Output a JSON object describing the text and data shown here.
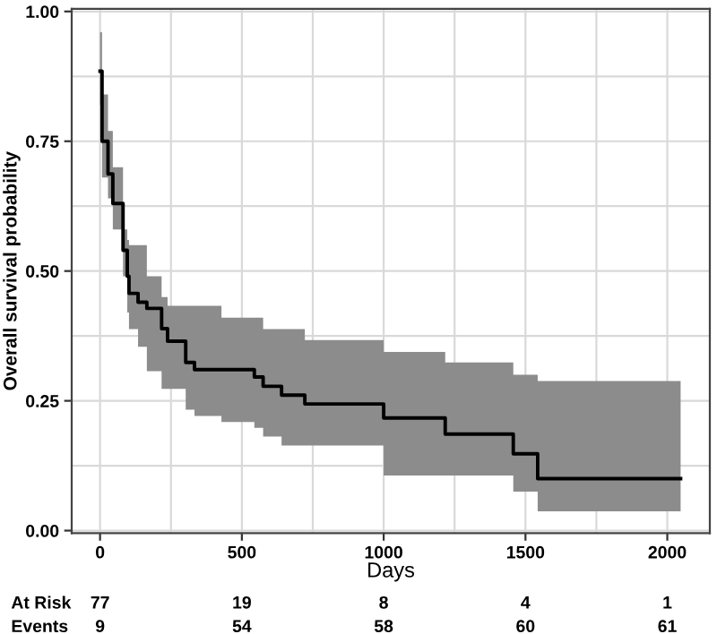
{
  "chart_data": {
    "type": "step",
    "xlabel": "Days",
    "ylabel": "Overall survival probability",
    "xlim": [
      -100,
      2150
    ],
    "ylim": [
      -0.005,
      1.005
    ],
    "xticks": [
      0,
      500,
      1000,
      1500,
      2000
    ],
    "yticks": [
      {
        "value": 0,
        "label": "0.00"
      },
      {
        "value": 0.25,
        "label": "0.25"
      },
      {
        "value": 0.5,
        "label": "0.50"
      },
      {
        "value": 0.75,
        "label": "0.75"
      },
      {
        "value": 1,
        "label": "1.00"
      }
    ],
    "grid": true,
    "series": [
      {
        "color": "#000000",
        "x": [
          0,
          7,
          28,
          45,
          81,
          96,
          102,
          134,
          165,
          217,
          238,
          302,
          333,
          428,
          544,
          575,
          640,
          722,
          1000,
          1217,
          1457,
          1543,
          2047
        ],
        "values": [
          0.885,
          0.75,
          0.687,
          0.63,
          0.54,
          0.49,
          0.457,
          0.44,
          0.428,
          0.389,
          0.365,
          0.324,
          0.31,
          0.31,
          0.296,
          0.278,
          0.261,
          0.244,
          0.217,
          0.186,
          0.148,
          0.1,
          0.1
        ],
        "upper": [
          0.96,
          0.84,
          0.77,
          0.7,
          0.58,
          0.56,
          0.55,
          0.55,
          0.49,
          0.45,
          0.433,
          0.433,
          0.433,
          0.41,
          0.41,
          0.388,
          0.388,
          0.367,
          0.344,
          0.324,
          0.3,
          0.288,
          0.288
        ],
        "lower": [
          0.82,
          0.68,
          0.64,
          0.58,
          0.49,
          0.42,
          0.388,
          0.354,
          0.307,
          0.273,
          0.273,
          0.233,
          0.221,
          0.209,
          0.198,
          0.181,
          0.164,
          0.164,
          0.106,
          0.106,
          0.075,
          0.037,
          0.037
        ]
      }
    ],
    "annotations": [
      "At Risk",
      "77",
      "19",
      "8",
      "4",
      "1",
      "Events",
      "9",
      "54",
      "58",
      "60",
      "61"
    ]
  }
}
